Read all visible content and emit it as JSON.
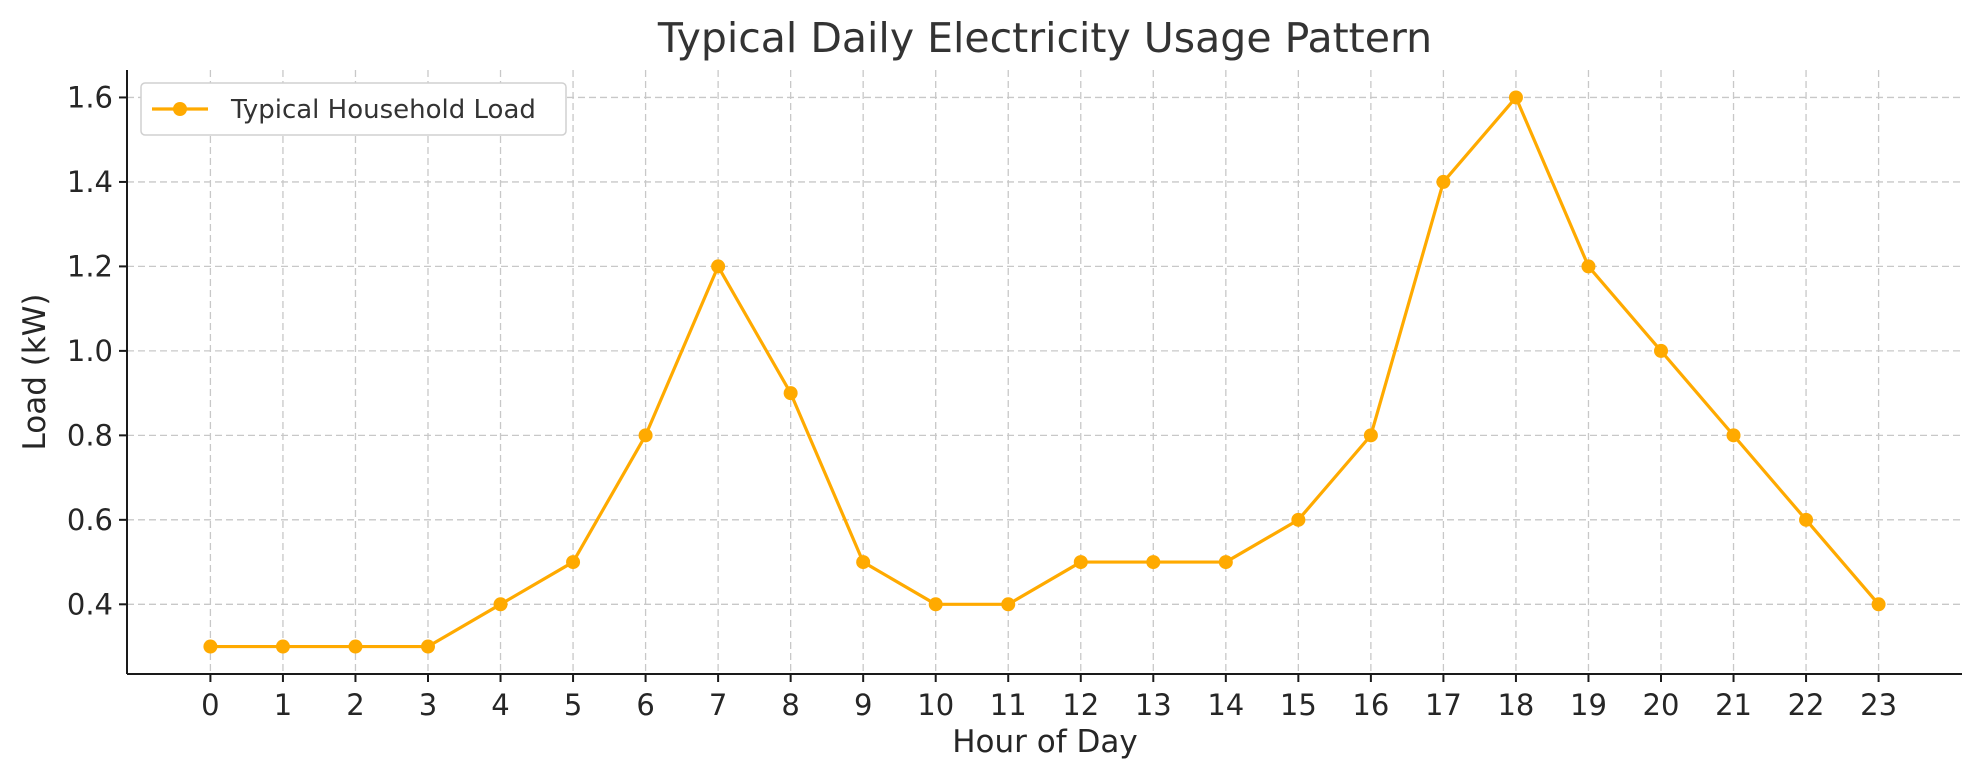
{
  "chart_data": {
    "type": "line",
    "title": "Typical Daily Electricity Usage Pattern",
    "xlabel": "Hour of Day",
    "ylabel": "Load (kW)",
    "x": [
      0,
      1,
      2,
      3,
      4,
      5,
      6,
      7,
      8,
      9,
      10,
      11,
      12,
      13,
      14,
      15,
      16,
      17,
      18,
      19,
      20,
      21,
      22,
      23
    ],
    "x_tick_labels": [
      "0",
      "1",
      "2",
      "3",
      "4",
      "5",
      "6",
      "7",
      "8",
      "9",
      "10",
      "11",
      "12",
      "13",
      "14",
      "15",
      "16",
      "17",
      "18",
      "19",
      "20",
      "21",
      "22",
      "23"
    ],
    "y_ticks": [
      0.4,
      0.6,
      0.8,
      1.0,
      1.2,
      1.4,
      1.6
    ],
    "y_tick_labels": [
      "0.4",
      "0.6",
      "0.8",
      "1.0",
      "1.2",
      "1.4",
      "1.6"
    ],
    "xlim": [
      -1.15,
      24.15
    ],
    "ylim": [
      0.235,
      1.665
    ],
    "grid": true,
    "legend_position": "top-left",
    "series": [
      {
        "name": "Typical Household Load",
        "color": "#FFAA00",
        "marker": "circle",
        "values": [
          0.3,
          0.3,
          0.3,
          0.3,
          0.4,
          0.5,
          0.8,
          1.2,
          0.9,
          0.5,
          0.4,
          0.4,
          0.5,
          0.5,
          0.5,
          0.6,
          0.8,
          1.4,
          1.6,
          1.2,
          1.0,
          0.8,
          0.6,
          0.4
        ]
      }
    ]
  }
}
